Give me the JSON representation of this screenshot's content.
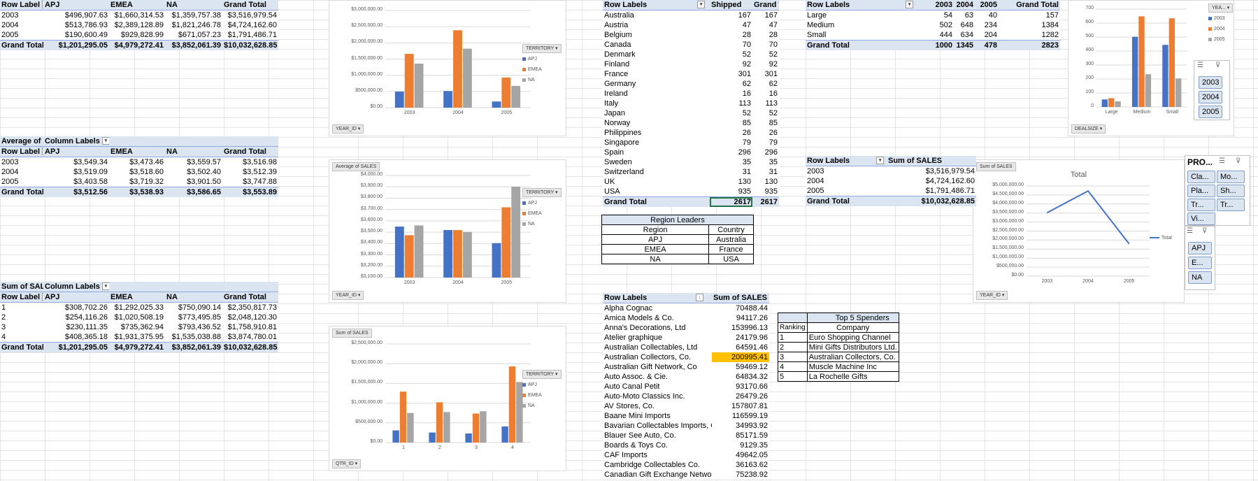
{
  "colors": {
    "apj": "#4472c4",
    "emea": "#ed7d31",
    "na": "#a5a5a5",
    "pivot_header": "#dbe5f1",
    "highlight": "#ffc000"
  },
  "pivot_sum_year": {
    "corner": "Row Label",
    "cols": [
      "APJ",
      "EMEA",
      "NA",
      "Grand Total"
    ],
    "rows": [
      [
        "2003",
        "$496,907.63",
        "$1,660,314.53",
        "$1,359,757.38",
        "$3,516,979.54"
      ],
      [
        "2004",
        "$513,786.93",
        "$2,389,128.89",
        "$1,821,246.78",
        "$4,724,162.60"
      ],
      [
        "2005",
        "$190,600.49",
        "$929,828.99",
        "$671,057.23",
        "$1,791,486.71"
      ]
    ],
    "total": [
      "Grand Total",
      "$1,201,295.05",
      "$4,979,272.41",
      "$3,852,061.39",
      "$10,032,628.85"
    ]
  },
  "pivot_avg_year": {
    "caption": "Average of S",
    "caption_cols": "Column Labels",
    "corner": "Row Label",
    "cols": [
      "APJ",
      "EMEA",
      "NA",
      "Grand Total"
    ],
    "rows": [
      [
        "2003",
        "$3,549.34",
        "$3,473.46",
        "$3,559.57",
        "$3,516.98"
      ],
      [
        "2004",
        "$3,519.09",
        "$3,518.60",
        "$3,502.40",
        "$3,512.39"
      ],
      [
        "2005",
        "$3,403.58",
        "$3,719.32",
        "$3,901.50",
        "$3,747.88"
      ]
    ],
    "total": [
      "Grand Total",
      "$3,512.56",
      "$3,538.93",
      "$3,586.65",
      "$3,553.89"
    ]
  },
  "pivot_sum_qtr": {
    "caption": "Sum of SALE",
    "caption_cols": "Column Labels",
    "corner": "Row Label",
    "cols": [
      "APJ",
      "EMEA",
      "NA",
      "Grand Total"
    ],
    "rows": [
      [
        "1",
        "$308,702.26",
        "$1,292,025.33",
        "$750,090.14",
        "$2,350,817.73"
      ],
      [
        "2",
        "$254,116.26",
        "$1,020,508.19",
        "$773,495.85",
        "$2,048,120.30"
      ],
      [
        "3",
        "$230,111.35",
        "$735,362.94",
        "$793,436.52",
        "$1,758,910.81"
      ],
      [
        "4",
        "$408,365.18",
        "$1,931,375.95",
        "$1,535,038.88",
        "$3,874,780.01"
      ]
    ],
    "total": [
      "Grand Total",
      "$1,201,295.05",
      "$4,979,272.41",
      "$3,852,061.39",
      "$10,032,628.85"
    ]
  },
  "pivot_shipped": {
    "cols": [
      "Row Labels",
      "Shipped",
      "Grand Total"
    ],
    "rows": [
      [
        "Australia",
        "167",
        "167"
      ],
      [
        "Austria",
        "47",
        "47"
      ],
      [
        "Belgium",
        "28",
        "28"
      ],
      [
        "Canada",
        "70",
        "70"
      ],
      [
        "Denmark",
        "52",
        "52"
      ],
      [
        "Finland",
        "92",
        "92"
      ],
      [
        "France",
        "301",
        "301"
      ],
      [
        "Germany",
        "62",
        "62"
      ],
      [
        "Ireland",
        "16",
        "16"
      ],
      [
        "Italy",
        "113",
        "113"
      ],
      [
        "Japan",
        "52",
        "52"
      ],
      [
        "Norway",
        "85",
        "85"
      ],
      [
        "Philippines",
        "26",
        "26"
      ],
      [
        "Singapore",
        "79",
        "79"
      ],
      [
        "Spain",
        "296",
        "296"
      ],
      [
        "Sweden",
        "35",
        "35"
      ],
      [
        "Switzerland",
        "31",
        "31"
      ],
      [
        "UK",
        "130",
        "130"
      ],
      [
        "USA",
        "935",
        "935"
      ]
    ],
    "total": [
      "Grand Total",
      "2617",
      "2617"
    ]
  },
  "region_leaders": {
    "title": "Region Leaders",
    "cols": [
      "Region",
      "Country"
    ],
    "rows": [
      [
        "APJ",
        "Australia"
      ],
      [
        "EMEA",
        "France"
      ],
      [
        "NA",
        "USA"
      ]
    ]
  },
  "pivot_customers": {
    "cols": [
      "Row Labels",
      "Sum of SALES"
    ],
    "rows": [
      [
        "Alpha Cognac",
        "70488.44"
      ],
      [
        "Amica Models & Co.",
        "94117.26"
      ],
      [
        "Anna's Decorations, Ltd",
        "153996.13"
      ],
      [
        "Atelier graphique",
        "24179.96"
      ],
      [
        "Australian Collectables, Ltd",
        "64591.46"
      ],
      [
        "Australian Collectors, Co.",
        "200995.41"
      ],
      [
        "Australian Gift Network, Co",
        "59469.12"
      ],
      [
        "Auto Assoc. & Cie.",
        "64834.32"
      ],
      [
        "Auto Canal Petit",
        "93170.66"
      ],
      [
        "Auto-Moto Classics Inc.",
        "26479.26"
      ],
      [
        "AV Stores, Co.",
        "157807.81"
      ],
      [
        "Baane Mini Imports",
        "116599.19"
      ],
      [
        "Bavarian Collectables Imports, Co",
        "34993.92"
      ],
      [
        "Blauer See Auto, Co.",
        "85171.59"
      ],
      [
        "Boards & Toys Co.",
        "9129.35"
      ],
      [
        "CAF Imports",
        "49642.05"
      ],
      [
        "Cambridge Collectables Co.",
        "36163.62"
      ],
      [
        "Canadian Gift Exchange Network",
        "75238.92"
      ]
    ]
  },
  "top5": {
    "title": "Top 5 Spenders",
    "cols": [
      "Ranking",
      "Company"
    ],
    "rows": [
      [
        "1",
        "Euro Shopping Channel"
      ],
      [
        "2",
        "Mini Gifts Distributors Ltd."
      ],
      [
        "3",
        "Australian Collectors, Co."
      ],
      [
        "4",
        "Muscle Machine Inc"
      ],
      [
        "5",
        "La Rochelle Gifts"
      ]
    ]
  },
  "pivot_dealsize": {
    "cols": [
      "Row Labels",
      "2003",
      "2004",
      "2005",
      "Grand Total"
    ],
    "rows": [
      [
        "Large",
        "54",
        "63",
        "40",
        "157"
      ],
      [
        "Medium",
        "502",
        "648",
        "234",
        "1384"
      ],
      [
        "Small",
        "444",
        "634",
        "204",
        "1282"
      ]
    ],
    "total": [
      "Grand Total",
      "1000",
      "1345",
      "478",
      "2823"
    ]
  },
  "pivot_sales_year": {
    "cols": [
      "Row Labels",
      "Sum of SALES"
    ],
    "rows": [
      [
        "2003",
        "$3,516,979.54"
      ],
      [
        "2004",
        "$4,724,162.60"
      ],
      [
        "2005",
        "$1,791,486.71"
      ]
    ],
    "total": [
      "Grand Total",
      "$10,032,628.85"
    ]
  },
  "slicer_year": {
    "buttons": [
      "2003",
      "2004",
      "2005"
    ]
  },
  "slicer_product": {
    "title": "PRO...",
    "buttons": [
      "Cla...",
      "Mo...",
      "Pla...",
      "Sh...",
      "Tr...",
      "Tr...",
      "Vi..."
    ]
  },
  "slicer_territory": {
    "buttons": [
      "APJ",
      "E...",
      "NA"
    ]
  },
  "chart_data": [
    {
      "type": "bar",
      "title": "",
      "field_value": "",
      "axis_field": "YEAR_ID",
      "legend_field": "TERRITORY",
      "legend": "right",
      "categories": [
        "2003",
        "2004",
        "2005"
      ],
      "ylim": [
        0,
        3000000
      ],
      "yticks": [
        "$0.00",
        "$500,000.00",
        "$1,000,000.00",
        "$1,500,000.00",
        "$2,000,000.00",
        "$2,500,000.00",
        "$3,000,000.00"
      ],
      "series": [
        {
          "name": "APJ",
          "values": [
            496907.63,
            513786.93,
            190600.49
          ]
        },
        {
          "name": "EMEA",
          "values": [
            1660314.53,
            2389128.89,
            929828.99
          ]
        },
        {
          "name": "NA",
          "values": [
            1359757.38,
            1821246.78,
            671057.23
          ]
        }
      ]
    },
    {
      "type": "bar",
      "title": "",
      "field_value": "Average of SALES",
      "axis_field": "YEAR_ID",
      "legend_field": "TERRITORY",
      "legend": "right",
      "categories": [
        "2003",
        "2004",
        "2005"
      ],
      "ylim": [
        3100,
        4000
      ],
      "yticks": [
        "$3,100.00",
        "$3,200.00",
        "$3,300.00",
        "$3,400.00",
        "$3,500.00",
        "$3,600.00",
        "$3,700.00",
        "$3,800.00",
        "$3,900.00",
        "$4,000.00"
      ],
      "series": [
        {
          "name": "APJ",
          "values": [
            3549.34,
            3519.09,
            3403.58
          ]
        },
        {
          "name": "EMEA",
          "values": [
            3473.46,
            3518.6,
            3719.32
          ]
        },
        {
          "name": "NA",
          "values": [
            3559.57,
            3502.4,
            3901.5
          ]
        }
      ]
    },
    {
      "type": "bar",
      "title": "",
      "field_value": "Sum of SALES",
      "axis_field": "QTR_ID",
      "legend_field": "TERRITORY",
      "legend": "right",
      "categories": [
        "1",
        "2",
        "3",
        "4"
      ],
      "ylim": [
        0,
        2500000
      ],
      "yticks": [
        "$0.00",
        "$500,000.00",
        "$1,000,000.00",
        "$1,500,000.00",
        "$2,000,000.00",
        "$2,500,000.00"
      ],
      "series": [
        {
          "name": "APJ",
          "values": [
            308702.26,
            254116.26,
            230111.35,
            408365.18
          ]
        },
        {
          "name": "EMEA",
          "values": [
            1292025.33,
            1020508.19,
            735362.94,
            1931375.95
          ]
        },
        {
          "name": "NA",
          "values": [
            750090.14,
            773495.85,
            793436.52,
            1535038.88
          ]
        }
      ]
    },
    {
      "type": "bar",
      "title": "",
      "field_value": "",
      "axis_field": "DEALSIZE",
      "legend_field": "YEA...",
      "legend": "right",
      "categories": [
        "Large",
        "Medium",
        "Small"
      ],
      "ylim": [
        0,
        700
      ],
      "yticks": [
        "0",
        "100",
        "200",
        "300",
        "400",
        "500",
        "600",
        "700"
      ],
      "series": [
        {
          "name": "2003",
          "values": [
            54,
            502,
            444
          ]
        },
        {
          "name": "2004",
          "values": [
            63,
            648,
            634
          ]
        },
        {
          "name": "2005",
          "values": [
            40,
            234,
            204
          ]
        }
      ]
    },
    {
      "type": "line",
      "title": "Total",
      "field_value": "Sum of SALES",
      "axis_field": "YEAR_ID",
      "legend": "right",
      "categories": [
        "2003",
        "2004",
        "2005"
      ],
      "ylim": [
        0,
        5000000
      ],
      "yticks": [
        "$0.00",
        "$500,000.00",
        "$1,000,000.00",
        "$1,500,000.00",
        "$2,000,000.00",
        "$2,500,000.00",
        "$3,000,000.00",
        "$3,500,000.00",
        "$4,000,000.00",
        "$4,500,000.00",
        "$5,000,000.00"
      ],
      "series": [
        {
          "name": "Total",
          "values": [
            3516979.54,
            4724162.6,
            1791486.71
          ]
        }
      ]
    }
  ]
}
